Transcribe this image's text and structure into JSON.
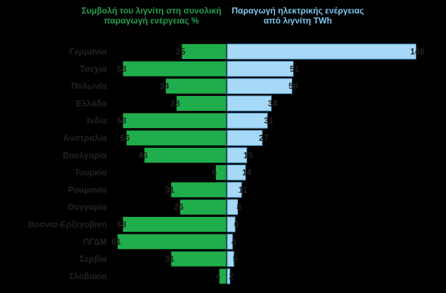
{
  "chart_data": [
    {
      "type": "bar",
      "title": "Συμβολή του λιγνίτη στη συνολική παραγωγή ενέργειας %",
      "categories": [
        "Γερμανία",
        "Τσεχία",
        "Πολωνία",
        "Ελλάδα",
        "Ινδία",
        "Αυστραλία",
        "Βουλγαρία",
        "Τουρκία",
        "Ρουμανία",
        "Ουγγαρία",
        "Βοσνία-Ερζεγοβίνη",
        "ΠΓΔΜ",
        "Σερβία",
        "Σλοβακία"
      ],
      "values": [
        25,
        58,
        34,
        28,
        58,
        56,
        46,
        6,
        31,
        26,
        58,
        61,
        31,
        4
      ],
      "color": "#1fae4b",
      "xlim": [
        0,
        75
      ]
    },
    {
      "type": "bar",
      "title": "Παραγωγή ηλεκτρικής ενέργειας από λιγνίτη TWh",
      "categories": [
        "Γερμανία",
        "Τσεχία",
        "Πολωνία",
        "Ελλάδα",
        "Ινδία",
        "Αυστραλία",
        "Βουλγαρία",
        "Τουρκία",
        "Ρουμανία",
        "Ουγγαρία",
        "Βοσνία-Ερζεγοβίνη",
        "ΠΓΔΜ",
        "Σερβία",
        "Σλοβακία"
      ],
      "values": [
        146,
        51,
        50,
        34,
        31,
        27,
        15,
        14,
        11,
        8,
        6,
        4,
        5,
        2
      ],
      "color": "#a6d8f7",
      "xlim": [
        0,
        150
      ]
    }
  ]
}
